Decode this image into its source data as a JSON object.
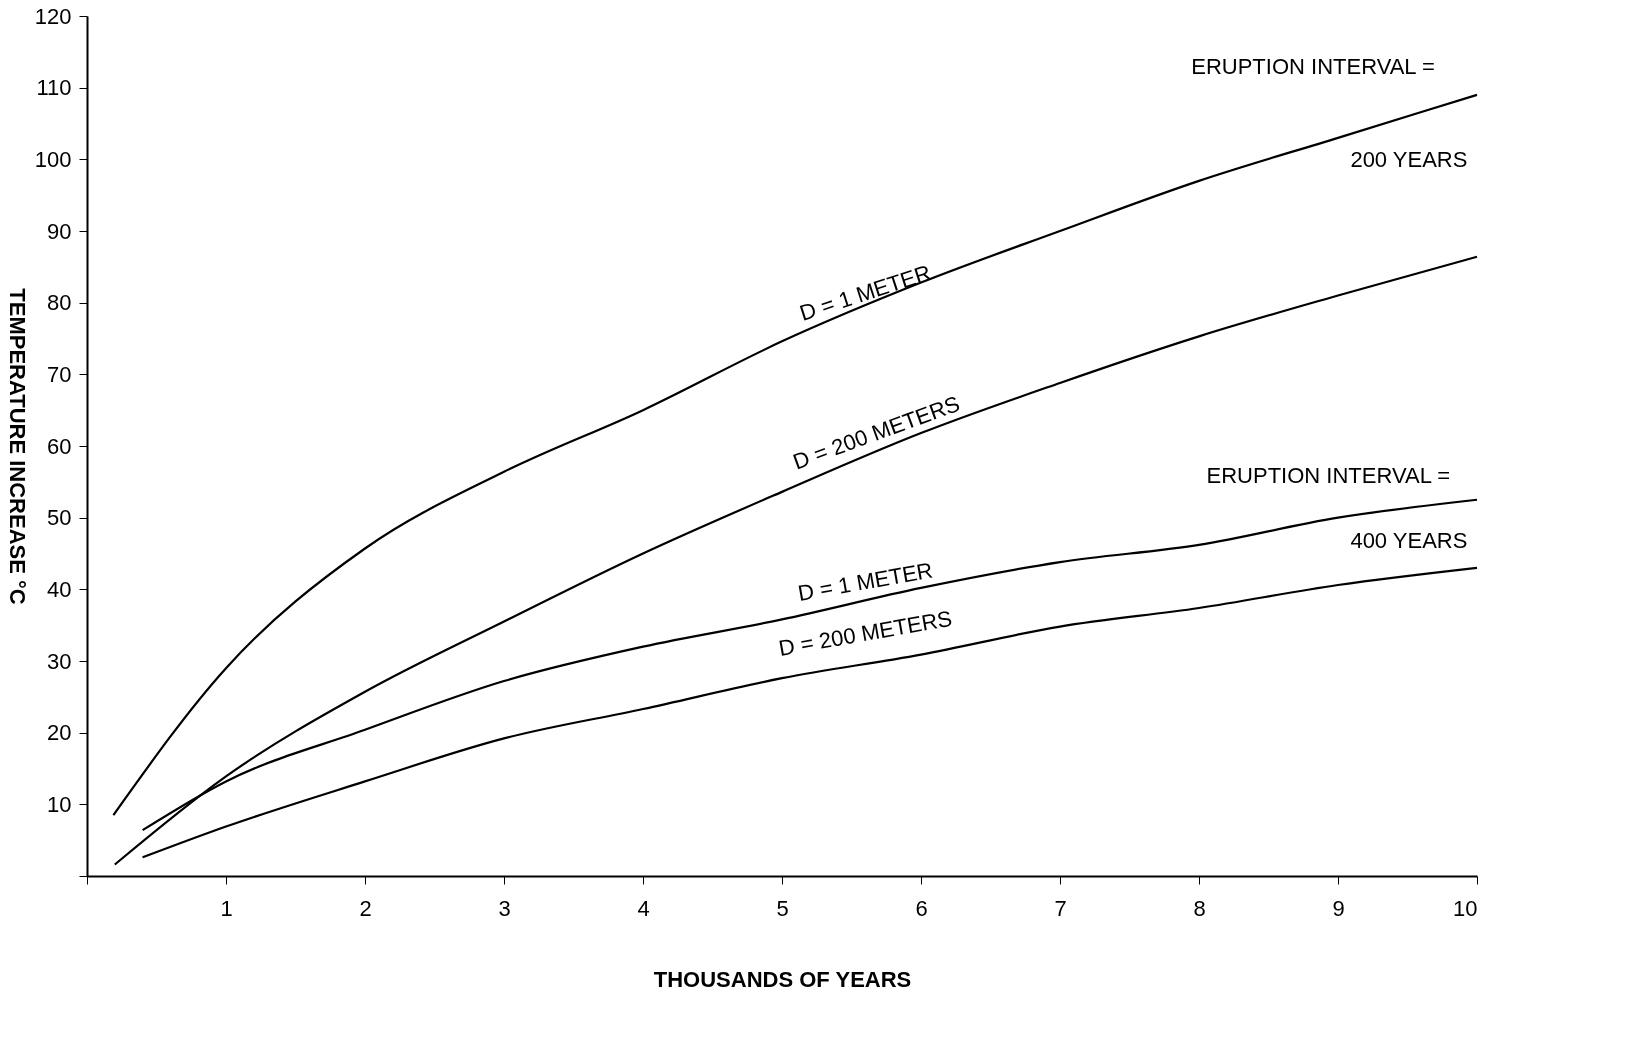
{
  "chart_data": {
    "type": "line",
    "xlabel": "THOUSANDS OF YEARS",
    "ylabel": "TEMPERATURE INCREASE °C",
    "xlim": [
      0,
      10
    ],
    "ylim": [
      0,
      120
    ],
    "xticks": [
      {
        "value": 0,
        "label": null
      },
      1,
      2,
      3,
      4,
      5,
      6,
      7,
      8,
      9,
      10
    ],
    "yticks": [
      {
        "value": 0,
        "label": null
      },
      10,
      20,
      30,
      40,
      50,
      60,
      70,
      80,
      90,
      100,
      110,
      120
    ],
    "grid": false,
    "legend": false,
    "marker": "none",
    "line_style": "solid",
    "series": [
      {
        "color": "#000000",
        "x": [
          0.19,
          1,
          2,
          3,
          4,
          5,
          6,
          7,
          8,
          9,
          10
        ],
        "values": [
          8.5,
          29,
          45.7,
          56.4,
          65,
          74.6,
          82.8,
          90,
          97,
          103,
          109
        ]
      },
      {
        "color": "#000000",
        "x": [
          0.2,
          1,
          2,
          3,
          4,
          5,
          6,
          7,
          8,
          9,
          10
        ],
        "values": [
          1.6,
          13.9,
          25.7,
          35.5,
          45,
          53.6,
          61.8,
          68.8,
          75.3,
          81,
          86.4
        ]
      },
      {
        "color": "#000000",
        "x": [
          0.4,
          1,
          2,
          3,
          4,
          5,
          6,
          7,
          8,
          9,
          10
        ],
        "values": [
          6.4,
          13.2,
          20.4,
          27.2,
          32,
          35.8,
          40.2,
          43.8,
          46.2,
          50,
          52.5
        ]
      },
      {
        "color": "#000000",
        "x": [
          0.4,
          1,
          2,
          3,
          4,
          5,
          6,
          7,
          8,
          9,
          10
        ],
        "values": [
          2.6,
          6.9,
          13.2,
          19.2,
          23.3,
          27.6,
          30.9,
          34.8,
          37.4,
          40.6,
          43
        ]
      }
    ],
    "annotations": [
      "ERUPTION INTERVAL =",
      "200 YEARS",
      "D = 1 METER",
      "D = 200 METERS",
      "ERUPTION INTERVAL =",
      "400 YEARS",
      "D = 1 METER",
      "D = 200 METERS"
    ]
  }
}
